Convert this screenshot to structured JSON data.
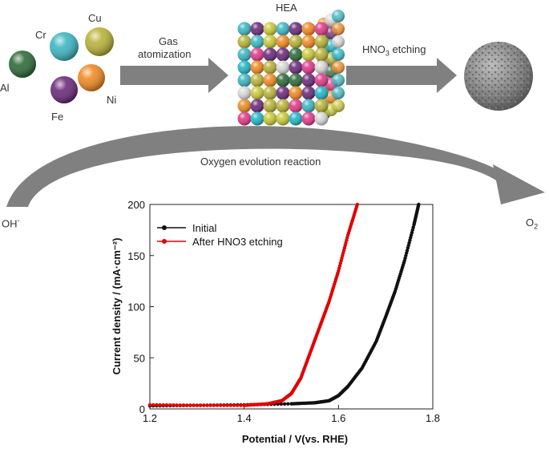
{
  "elements": [
    {
      "symbol": "Al",
      "color": "#2e6b3a"
    },
    {
      "symbol": "Cr",
      "color": "#3cb6c2"
    },
    {
      "symbol": "Cu",
      "color": "#b9b23a"
    },
    {
      "symbol": "Fe",
      "color": "#6b2a7a"
    },
    {
      "symbol": "Ni",
      "color": "#f08a24"
    }
  ],
  "steps": {
    "gas_label_line1": "Gas",
    "gas_label_line2": "atomization",
    "hea_label": "HEA",
    "etching_label_prefix": "HNO",
    "etching_label_sub": "3",
    "etching_label_suffix": " etching"
  },
  "reaction": {
    "title": "Oxygen evolution reaction",
    "reactant": "OH",
    "reactant_sup": "-",
    "product": "O",
    "product_sub": "2"
  },
  "colors": {
    "initial": "#111111",
    "etched": "#e00000",
    "arrow": "#808080"
  },
  "chart_data": {
    "type": "line",
    "xlabel": "Potential / V(vs. RHE)",
    "ylabel": "Current density / (mA·cm⁻²)",
    "xlim": [
      1.2,
      1.8
    ],
    "ylim": [
      0,
      200
    ],
    "xticks": [
      "1.2",
      "1.4",
      "1.6",
      "1.8"
    ],
    "yticks": [
      "0",
      "50",
      "100",
      "150",
      "200"
    ],
    "legend_position": "top-left",
    "series": [
      {
        "name": "Initial",
        "color": "#111111",
        "x": [
          1.2,
          1.3,
          1.4,
          1.5,
          1.55,
          1.58,
          1.6,
          1.62,
          1.65,
          1.68,
          1.7,
          1.72,
          1.74,
          1.76,
          1.77
        ],
        "y": [
          3,
          3.5,
          4,
          5,
          6,
          8,
          13,
          22,
          40,
          66,
          90,
          115,
          145,
          180,
          200
        ]
      },
      {
        "name": "After HNO3 etching",
        "color": "#e00000",
        "x": [
          1.2,
          1.3,
          1.4,
          1.45,
          1.48,
          1.5,
          1.52,
          1.54,
          1.56,
          1.58,
          1.6,
          1.62,
          1.64
        ],
        "y": [
          4,
          3.5,
          3.5,
          5,
          8,
          15,
          30,
          55,
          80,
          105,
          135,
          170,
          200
        ]
      }
    ]
  }
}
